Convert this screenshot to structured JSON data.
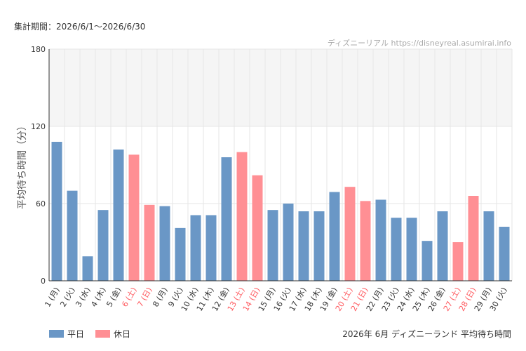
{
  "period_label": "集計期間：2026/6/1～2026/6/30",
  "watermark": "ディズニーリアル https://disneyreal.asumirai.info",
  "footer_title": "2026年 6月 ディズニーランド 平均待ち時間",
  "legend": [
    {
      "label": "平日",
      "color": "#6a97c6"
    },
    {
      "label": "休日",
      "color": "#ff8f94"
    }
  ],
  "colors": {
    "weekday": "#6a97c6",
    "holiday": "#ff8f94",
    "holiday_label": "#ff5a5f",
    "band": "#f5f5f5",
    "grid": "#e6e6e6",
    "axis": "#333333"
  },
  "chart_data": {
    "type": "bar",
    "ylabel": "平均待ち時間（分）",
    "ylim": [
      0,
      180
    ],
    "yticks": [
      0,
      60,
      120,
      180
    ],
    "shaded_band": [
      120,
      180
    ],
    "categories": [
      "1 (月)",
      "2 (火)",
      "3 (水)",
      "4 (木)",
      "5 (金)",
      "6 (土)",
      "7 (日)",
      "8 (月)",
      "9 (火)",
      "10 (水)",
      "11 (木)",
      "12 (金)",
      "13 (土)",
      "14 (日)",
      "15 (月)",
      "16 (火)",
      "17 (水)",
      "18 (木)",
      "19 (金)",
      "20 (土)",
      "21 (日)",
      "22 (月)",
      "23 (火)",
      "24 (水)",
      "25 (木)",
      "26 (金)",
      "27 (土)",
      "28 (日)",
      "29 (月)",
      "30 (火)"
    ],
    "values": [
      108,
      70,
      19,
      55,
      102,
      98,
      59,
      58,
      41,
      51,
      51,
      96,
      100,
      82,
      55,
      60,
      54,
      54,
      69,
      73,
      62,
      63,
      49,
      49,
      31,
      54,
      30,
      66,
      54,
      42
    ],
    "day_type": [
      "平日",
      "平日",
      "平日",
      "平日",
      "平日",
      "休日",
      "休日",
      "平日",
      "平日",
      "平日",
      "平日",
      "平日",
      "休日",
      "休日",
      "平日",
      "平日",
      "平日",
      "平日",
      "平日",
      "休日",
      "休日",
      "平日",
      "平日",
      "平日",
      "平日",
      "平日",
      "休日",
      "休日",
      "平日",
      "平日"
    ]
  }
}
